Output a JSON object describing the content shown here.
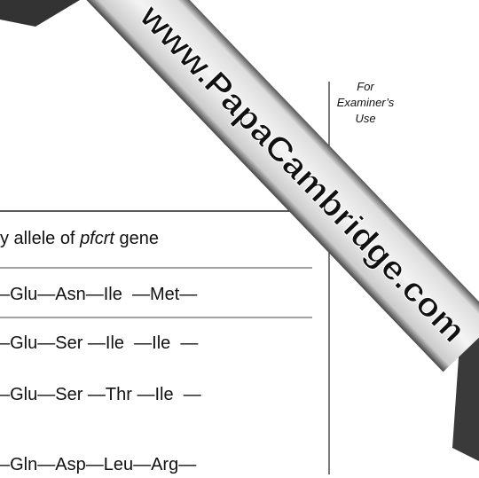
{
  "examiner": {
    "lines": [
      "For",
      "Examiner’s",
      "Use"
    ]
  },
  "table": {
    "header": [
      "y allele of ",
      "pfcrt",
      " gene"
    ],
    "rows": [
      "–Glu—Asn—Ile  —Met—",
      "–Glu—Ser —Ile  —Ile  —",
      "–Glu—Ser —Thr —Ile  —",
      "–Gln—Asp—Leu—Arg—"
    ]
  },
  "watermark": "www.PapaCambridge.com"
}
